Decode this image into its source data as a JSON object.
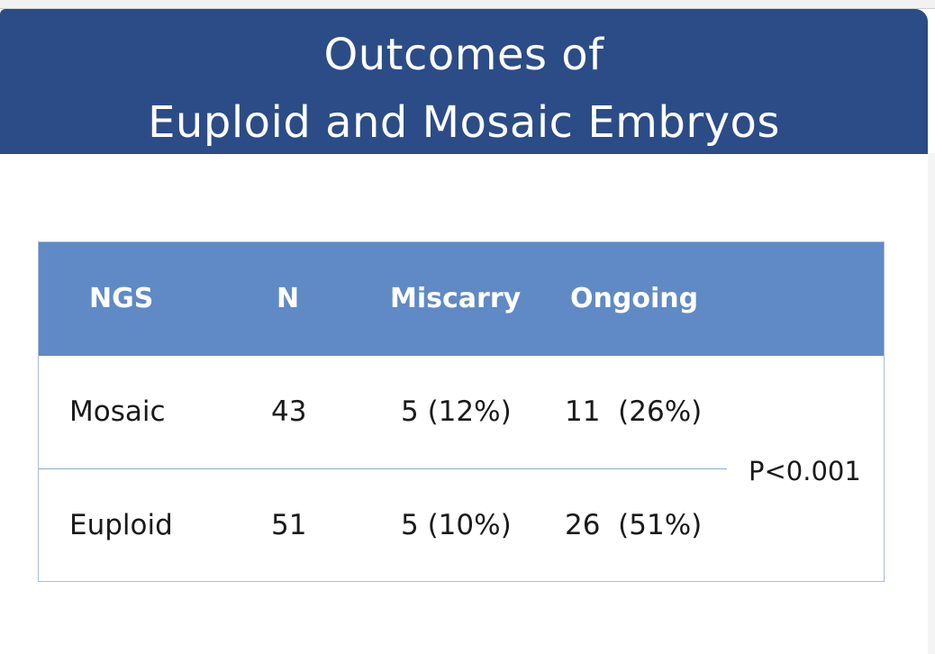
{
  "slide": {
    "title_line1": "Outcomes of",
    "title_line2": "Euploid and Mosaic Embryos"
  },
  "table": {
    "headers": [
      "NGS",
      "N",
      "Miscarry",
      "Ongoing"
    ],
    "rows": [
      [
        "Mosaic",
        "43",
        "5 (12%)",
        "11  (26%)"
      ],
      [
        "Euploid",
        "51",
        "5 (10%)",
        "26  (51%)"
      ]
    ],
    "p_value": "P<0.001"
  },
  "colors": {
    "title_bar": "#2b4c86",
    "table_header": "#5f8ac5",
    "divider": "#8fa9cc"
  }
}
